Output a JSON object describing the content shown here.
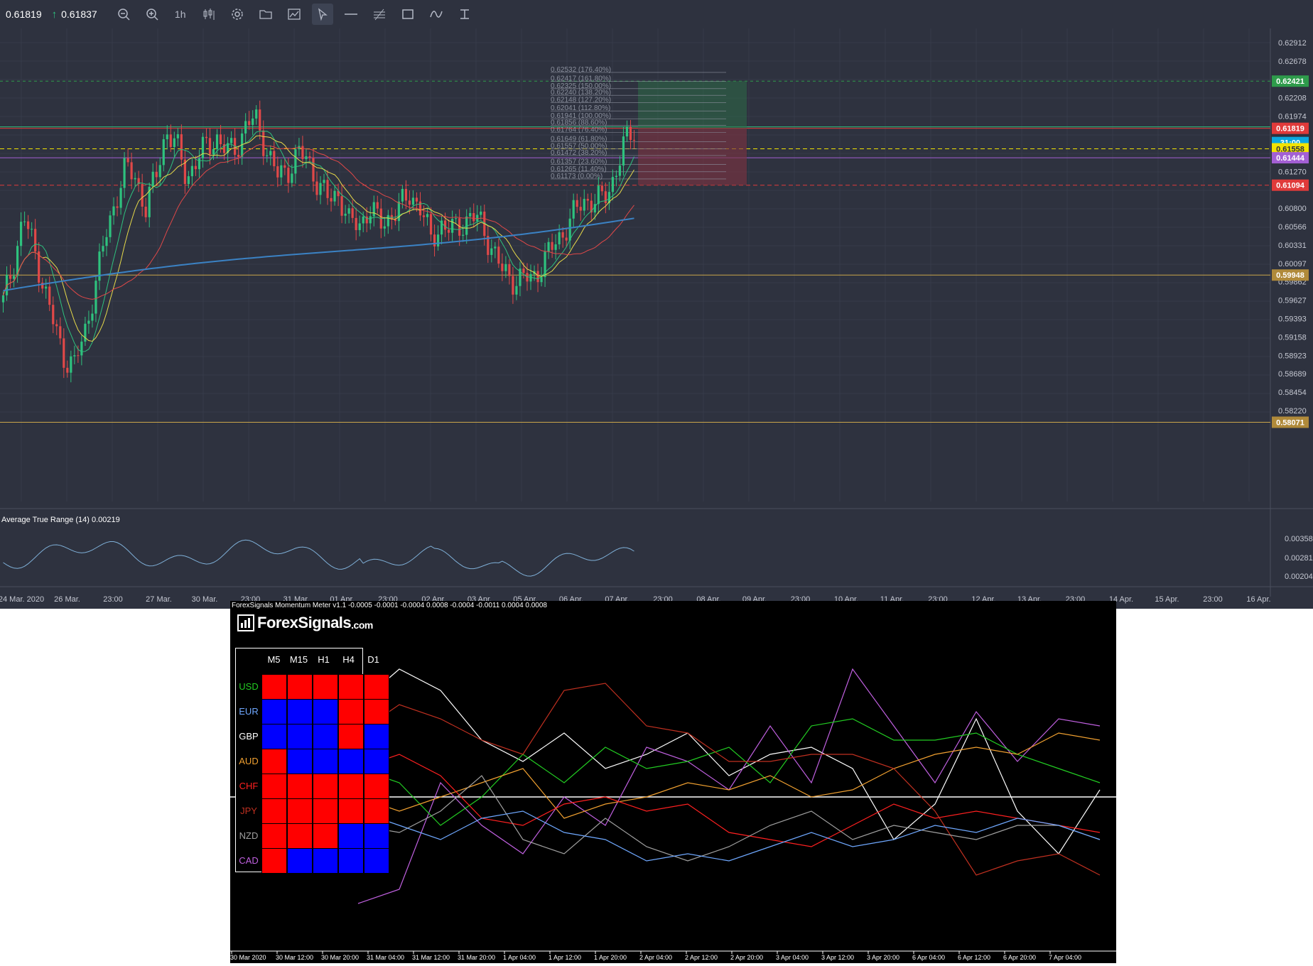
{
  "toolbar": {
    "bid": "0.61819",
    "ask": "0.61837",
    "timeframe": "1h",
    "buttons": [
      "zoom-out",
      "zoom-in",
      "timeframe",
      "chart-type",
      "settings",
      "folder",
      "chart-image",
      "cursor",
      "horizontal-line",
      "parallel-lines",
      "rectangle",
      "freehand",
      "text"
    ]
  },
  "price_axis": [
    "0.62912",
    "0.62678",
    "0.62421",
    "0.62208",
    "0.61974",
    "0.61819",
    "31:00",
    "0.61558",
    "0.61444",
    "0.61270",
    "0.61094",
    "0.60800",
    "0.60566",
    "0.60331",
    "0.60097",
    "0.59948",
    "0.59862",
    "0.59627",
    "0.59393",
    "0.59158",
    "0.58923",
    "0.58689",
    "0.58454",
    "0.58220",
    "0.58071"
  ],
  "price_tags": [
    {
      "label": "0.62421",
      "color": "#2e9b4b",
      "text_color": "#ffffff"
    },
    {
      "label": "0.61819",
      "color": "#e03a3a",
      "text_color": "#ffffff"
    },
    {
      "label": "31:00",
      "color": "#0aa8e0",
      "text_color": "#ffffff"
    },
    {
      "label": "0.61558",
      "color": "#f2e300",
      "text_color": "#2e323f"
    },
    {
      "label": "0.61444",
      "color": "#a35fd4",
      "text_color": "#ffffff"
    },
    {
      "label": "0.61094",
      "color": "#e03a3a",
      "text_color": "#ffffff"
    },
    {
      "label": "0.59948",
      "color": "#b08a3a",
      "text_color": "#ffffff"
    },
    {
      "label": "0.58071",
      "color": "#b08a3a",
      "text_color": "#ffffff"
    }
  ],
  "fib_levels": [
    "0.62532 (176.40%)",
    "0.62417 (161.80%)",
    "0.62325 (150.00%)",
    "0.62240 (138.20%)",
    "0.62148 (127.20%)",
    "0.62041 (112.80%)",
    "0.61941 (100.00%)",
    "0.61856 (88.60%)",
    "0.61764 (76.40%)",
    "0.61649 (61.80%)",
    "0.61557 (50.00%)",
    "0.61472 (38.20%)",
    "0.61357 (23.60%)",
    "0.61265 (11.40%)",
    "0.61173 (0.00%)"
  ],
  "time_axis": [
    "24 Mar. 2020",
    "26 Mar.",
    "23:00",
    "27 Mar.",
    "30 Mar.",
    "23:00",
    "31 Mar.",
    "01 Apr.",
    "23:00",
    "02 Apr.",
    "03 Apr.",
    "05 Apr.",
    "06 Apr.",
    "07 Apr.",
    "23:00",
    "08 Apr.",
    "09 Apr.",
    "23:00",
    "10 Apr.",
    "11 Apr.",
    "23:00",
    "12 Apr.",
    "13 Apr.",
    "23:00",
    "14 Apr.",
    "15 Apr.",
    "23:00",
    "16 Apr."
  ],
  "atr": {
    "title": "Average True Range (14) 0.00219",
    "axis": [
      "0.00358",
      "0.00281",
      "0.00204"
    ]
  },
  "meter": {
    "title": "ForexSignals Momentum Meter v1.1 -0.0005 -0.0001 -0.0004 0.0008 -0.0004 -0.0011 0.0004 0.0008",
    "brand": "ForexSignals",
    "brand_suffix": ".com",
    "columns": [
      "M5",
      "M15",
      "H1",
      "H4",
      "D1"
    ],
    "rows": [
      {
        "currency": "USD",
        "color": "#22cc22",
        "cells": [
          "r",
          "r",
          "r",
          "r",
          "r"
        ]
      },
      {
        "currency": "EUR",
        "color": "#6fa8ff",
        "cells": [
          "b",
          "b",
          "b",
          "r",
          "r"
        ]
      },
      {
        "currency": "GBP",
        "color": "#ffffff",
        "cells": [
          "b",
          "b",
          "b",
          "r",
          "b"
        ]
      },
      {
        "currency": "AUD",
        "color": "#f0a030",
        "cells": [
          "r",
          "b",
          "b",
          "b",
          "b"
        ]
      },
      {
        "currency": "CHF",
        "color": "#ff2020",
        "cells": [
          "r",
          "r",
          "r",
          "r",
          "r"
        ]
      },
      {
        "currency": "JPY",
        "color": "#c03020",
        "cells": [
          "r",
          "r",
          "r",
          "r",
          "r"
        ]
      },
      {
        "currency": "NZD",
        "color": "#a0a0a0",
        "cells": [
          "r",
          "r",
          "r",
          "b",
          "b"
        ]
      },
      {
        "currency": "CAD",
        "color": "#c060e0",
        "cells": [
          "r",
          "b",
          "b",
          "b",
          "b"
        ]
      }
    ],
    "time_axis": [
      "30 Mar 2020",
      "30 Mar 12:00",
      "30 Mar 20:00",
      "31 Mar 04:00",
      "31 Mar 12:00",
      "31 Mar 20:00",
      "1 Apr 04:00",
      "1 Apr 12:00",
      "1 Apr 20:00",
      "2 Apr 04:00",
      "2 Apr 12:00",
      "2 Apr 20:00",
      "3 Apr 04:00",
      "3 Apr 12:00",
      "3 Apr 20:00",
      "6 Apr 04:00",
      "6 Apr 12:00",
      "6 Apr 20:00",
      "7 Apr 04:00"
    ]
  }
}
